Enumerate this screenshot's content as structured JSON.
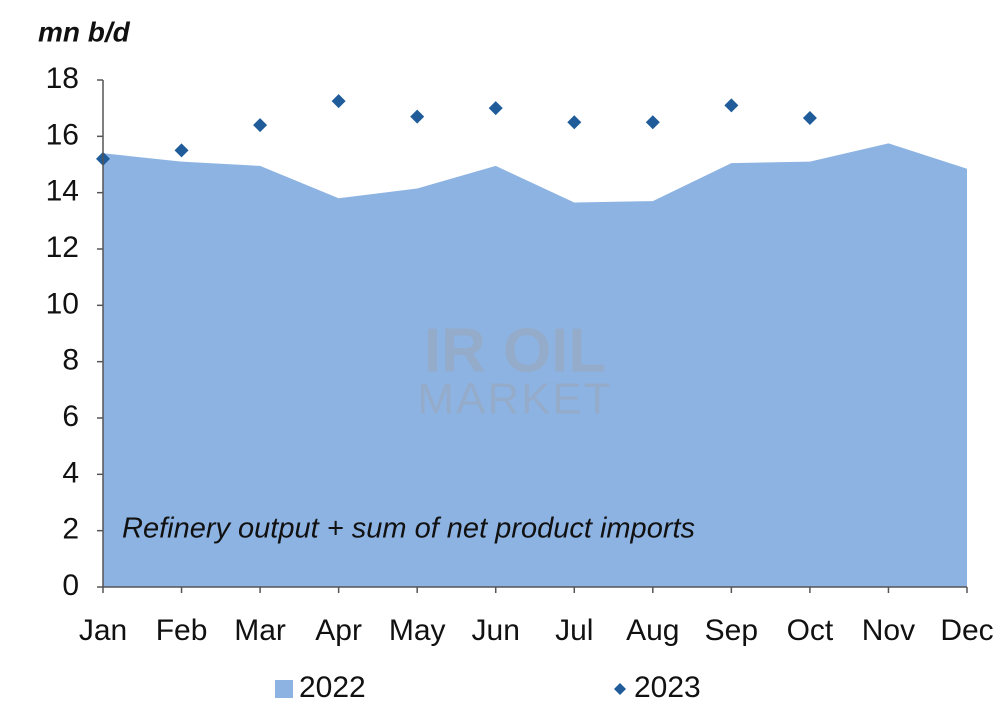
{
  "chart_data": {
    "type": "area_scatter",
    "y_axis_label": "mn b/d",
    "annotation": "Refinery output + sum of net product imports",
    "watermark": [
      "IR OIL",
      "MARKET"
    ],
    "categories": [
      "Jan",
      "Feb",
      "Mar",
      "Apr",
      "May",
      "Jun",
      "Jul",
      "Aug",
      "Sep",
      "Oct",
      "Nov",
      "Dec"
    ],
    "series": [
      {
        "name": "2022",
        "type": "area",
        "color": "#8db3e2",
        "values": [
          15.4,
          15.1,
          14.95,
          13.8,
          14.15,
          14.95,
          13.65,
          13.7,
          15.05,
          15.1,
          15.75,
          14.85
        ]
      },
      {
        "name": "2023",
        "type": "scatter",
        "color": "#1f5c99",
        "values": [
          15.2,
          15.5,
          16.4,
          17.25,
          16.7,
          17.0,
          16.5,
          16.5,
          17.1,
          16.65,
          null,
          null
        ]
      }
    ],
    "ylim": [
      0,
      18
    ],
    "yticks": [
      0,
      2,
      4,
      6,
      8,
      10,
      12,
      14,
      16,
      18
    ],
    "grid": false
  }
}
